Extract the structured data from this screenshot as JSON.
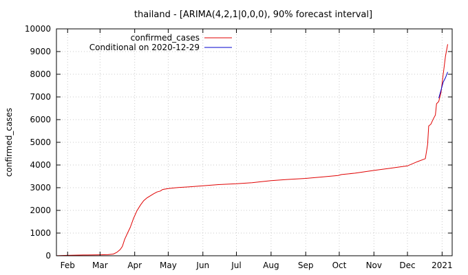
{
  "chart_data": {
    "type": "line",
    "title": "thailand -  [ARIMA(4,2,1|0,0,0), 90% forecast interval]",
    "xlabel": "",
    "ylabel": "confirmed_cases",
    "ylim": [
      0,
      10000
    ],
    "yticks": [
      0,
      1000,
      2000,
      3000,
      4000,
      5000,
      6000,
      7000,
      8000,
      9000,
      10000
    ],
    "xlim": [
      "2020-01-22",
      "2021-01-10"
    ],
    "xticks": [
      {
        "date": "2020-02-01",
        "label": "Feb"
      },
      {
        "date": "2020-03-01",
        "label": "Mar"
      },
      {
        "date": "2020-04-01",
        "label": "Apr"
      },
      {
        "date": "2020-05-01",
        "label": "May"
      },
      {
        "date": "2020-06-01",
        "label": "Jun"
      },
      {
        "date": "2020-07-01",
        "label": "Jul"
      },
      {
        "date": "2020-08-01",
        "label": "Aug"
      },
      {
        "date": "2020-09-01",
        "label": "Sep"
      },
      {
        "date": "2020-10-01",
        "label": "Oct"
      },
      {
        "date": "2020-11-01",
        "label": "Nov"
      },
      {
        "date": "2020-12-01",
        "label": "Dec"
      },
      {
        "date": "2021-01-01",
        "label": "2021"
      }
    ],
    "grid": true,
    "legend_position": "top-left",
    "series": [
      {
        "name": "confirmed_cases",
        "color": "#e00000",
        "points": [
          [
            "2020-01-22",
            4
          ],
          [
            "2020-02-01",
            19
          ],
          [
            "2020-02-15",
            34
          ],
          [
            "2020-03-01",
            42
          ],
          [
            "2020-03-08",
            50
          ],
          [
            "2020-03-13",
            75
          ],
          [
            "2020-03-16",
            147
          ],
          [
            "2020-03-19",
            272
          ],
          [
            "2020-03-21",
            411
          ],
          [
            "2020-03-23",
            721
          ],
          [
            "2020-03-26",
            1045
          ],
          [
            "2020-03-28",
            1245
          ],
          [
            "2020-03-31",
            1651
          ],
          [
            "2020-04-03",
            1978
          ],
          [
            "2020-04-06",
            2220
          ],
          [
            "2020-04-09",
            2423
          ],
          [
            "2020-04-12",
            2551
          ],
          [
            "2020-04-15",
            2643
          ],
          [
            "2020-04-18",
            2733
          ],
          [
            "2020-04-21",
            2811
          ],
          [
            "2020-04-24",
            2854
          ],
          [
            "2020-04-26",
            2920
          ],
          [
            "2020-05-01",
            2960
          ],
          [
            "2020-05-10",
            3009
          ],
          [
            "2020-05-20",
            3037
          ],
          [
            "2020-06-01",
            3083
          ],
          [
            "2020-06-15",
            3135
          ],
          [
            "2020-07-01",
            3173
          ],
          [
            "2020-07-15",
            3220
          ],
          [
            "2020-08-01",
            3310
          ],
          [
            "2020-08-15",
            3360
          ],
          [
            "2020-09-01",
            3410
          ],
          [
            "2020-09-15",
            3470
          ],
          [
            "2020-09-30",
            3540
          ],
          [
            "2020-10-03",
            3580
          ],
          [
            "2020-10-15",
            3640
          ],
          [
            "2020-11-01",
            3760
          ],
          [
            "2020-11-15",
            3850
          ],
          [
            "2020-12-01",
            3960
          ],
          [
            "2020-12-10",
            4150
          ],
          [
            "2020-12-17",
            4280
          ],
          [
            "2020-12-19",
            4900
          ],
          [
            "2020-12-20",
            5720
          ],
          [
            "2020-12-22",
            5800
          ],
          [
            "2020-12-24",
            6020
          ],
          [
            "2020-12-26",
            6200
          ],
          [
            "2020-12-27",
            6700
          ],
          [
            "2020-12-29",
            6800
          ],
          [
            "2020-12-31",
            7200
          ],
          [
            "2021-01-02",
            8000
          ],
          [
            "2021-01-04",
            8800
          ],
          [
            "2021-01-06",
            9320
          ]
        ]
      },
      {
        "name": "Conditional on 2020-12-29",
        "color": "#0000cc",
        "points": [
          [
            "2020-12-29",
            6950
          ],
          [
            "2020-12-31",
            7300
          ],
          [
            "2021-01-02",
            7650
          ],
          [
            "2021-01-04",
            7850
          ],
          [
            "2021-01-06",
            8100
          ]
        ]
      }
    ]
  }
}
